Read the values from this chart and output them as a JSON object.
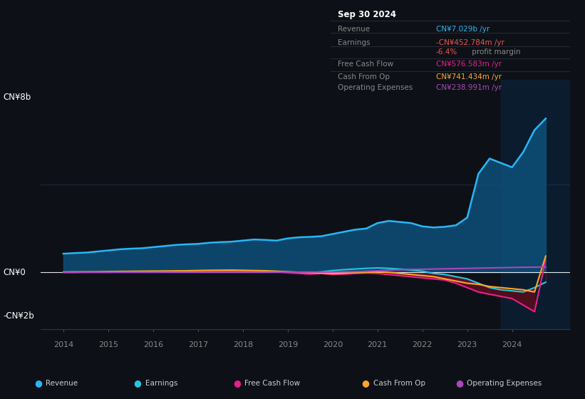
{
  "bg_color": "#0d1117",
  "plot_bg_color": "#0d1b2a",
  "grid_color": "#2a3f5f",
  "zero_line_color": "#ffffff",
  "ylabel_top": "CN¥8b",
  "ylabel_zero": "CN¥0",
  "ylabel_bottom": "-CN¥2b",
  "ylim": [
    -2600000000.0,
    8800000000.0
  ],
  "xlim": [
    2013.5,
    2025.3
  ],
  "x_tick_years": [
    2014,
    2015,
    2016,
    2017,
    2018,
    2019,
    2020,
    2021,
    2022,
    2023,
    2024
  ],
  "years": [
    2014.0,
    2014.25,
    2014.5,
    2014.75,
    2015.0,
    2015.25,
    2015.5,
    2015.75,
    2016.0,
    2016.25,
    2016.5,
    2016.75,
    2017.0,
    2017.25,
    2017.5,
    2017.75,
    2018.0,
    2018.25,
    2018.5,
    2018.75,
    2019.0,
    2019.25,
    2019.5,
    2019.75,
    2020.0,
    2020.25,
    2020.5,
    2020.75,
    2021.0,
    2021.25,
    2021.5,
    2021.75,
    2022.0,
    2022.25,
    2022.5,
    2022.75,
    2023.0,
    2023.25,
    2023.5,
    2023.75,
    2024.0,
    2024.25,
    2024.5,
    2024.75
  ],
  "revenue": [
    850000000.0,
    880000000.0,
    900000000.0,
    950000000.0,
    1000000000.0,
    1050000000.0,
    1080000000.0,
    1100000000.0,
    1150000000.0,
    1200000000.0,
    1250000000.0,
    1280000000.0,
    1300000000.0,
    1350000000.0,
    1380000000.0,
    1400000000.0,
    1450000000.0,
    1500000000.0,
    1480000000.0,
    1450000000.0,
    1550000000.0,
    1600000000.0,
    1620000000.0,
    1650000000.0,
    1750000000.0,
    1850000000.0,
    1950000000.0,
    2000000000.0,
    2250000000.0,
    2350000000.0,
    2300000000.0,
    2250000000.0,
    2100000000.0,
    2050000000.0,
    2080000000.0,
    2150000000.0,
    2500000000.0,
    4500000000.0,
    5200000000.0,
    5000000000.0,
    4800000000.0,
    5500000000.0,
    6500000000.0,
    7029000000.0
  ],
  "earnings": [
    10000000.0,
    10000000.0,
    10000000.0,
    15000000.0,
    20000000.0,
    20000000.0,
    25000000.0,
    25000000.0,
    30000000.0,
    30000000.0,
    35000000.0,
    35000000.0,
    40000000.0,
    40000000.0,
    40000000.0,
    40000000.0,
    50000000.0,
    50000000.0,
    40000000.0,
    30000000.0,
    20000000.0,
    0.0,
    -20000000.0,
    20000000.0,
    80000000.0,
    120000000.0,
    150000000.0,
    180000000.0,
    200000000.0,
    180000000.0,
    150000000.0,
    100000000.0,
    50000000.0,
    -50000000.0,
    -100000000.0,
    -200000000.0,
    -300000000.0,
    -500000000.0,
    -700000000.0,
    -800000000.0,
    -850000000.0,
    -900000000.0,
    -700000000.0,
    -452784000.0
  ],
  "free_cash_flow": [
    0.0,
    0.0,
    10000000.0,
    10000000.0,
    20000000.0,
    20000000.0,
    25000000.0,
    30000000.0,
    30000000.0,
    35000000.0,
    40000000.0,
    40000000.0,
    50000000.0,
    60000000.0,
    70000000.0,
    80000000.0,
    60000000.0,
    50000000.0,
    40000000.0,
    20000000.0,
    -20000000.0,
    -50000000.0,
    -80000000.0,
    -50000000.0,
    -100000000.0,
    -80000000.0,
    -50000000.0,
    -30000000.0,
    -50000000.0,
    -100000000.0,
    -150000000.0,
    -200000000.0,
    -250000000.0,
    -300000000.0,
    -350000000.0,
    -500000000.0,
    -700000000.0,
    -900000000.0,
    -1000000000.0,
    -1100000000.0,
    -1200000000.0,
    -1500000000.0,
    -1800000000.0,
    576583000.0
  ],
  "cash_from_op": [
    10000000.0,
    15000000.0,
    20000000.0,
    20000000.0,
    30000000.0,
    40000000.0,
    45000000.0,
    50000000.0,
    55000000.0,
    60000000.0,
    65000000.0,
    70000000.0,
    80000000.0,
    90000000.0,
    95000000.0,
    100000000.0,
    90000000.0,
    80000000.0,
    70000000.0,
    50000000.0,
    20000000.0,
    0.0,
    -20000000.0,
    -40000000.0,
    -60000000.0,
    -40000000.0,
    -20000000.0,
    0.0,
    20000000.0,
    0.0,
    -50000000.0,
    -100000000.0,
    -150000000.0,
    -200000000.0,
    -300000000.0,
    -400000000.0,
    -500000000.0,
    -550000000.0,
    -650000000.0,
    -700000000.0,
    -750000000.0,
    -800000000.0,
    -900000000.0,
    741434000.0
  ],
  "operating_expenses": [
    -5000000.0,
    -5000000.0,
    0.0,
    0.0,
    0.0,
    5000000.0,
    5000000.0,
    5000000.0,
    5000000.0,
    10000000.0,
    10000000.0,
    10000000.0,
    10000000.0,
    10000000.0,
    10000000.0,
    10000000.0,
    10000000.0,
    10000000.0,
    10000000.0,
    10000000.0,
    10000000.0,
    10000000.0,
    10000000.0,
    10000000.0,
    10000000.0,
    20000000.0,
    30000000.0,
    50000000.0,
    70000000.0,
    100000000.0,
    120000000.0,
    130000000.0,
    140000000.0,
    150000000.0,
    160000000.0,
    170000000.0,
    180000000.0,
    190000000.0,
    200000000.0,
    210000000.0,
    220000000.0,
    230000000.0,
    235000000.0,
    238991000.0
  ],
  "revenue_color": "#29b6f6",
  "revenue_fill": "#0d4f7a",
  "earnings_color": "#26c6da",
  "fcf_color": "#e91e8c",
  "cashop_color": "#ffa726",
  "opex_color": "#ab47bc",
  "neg_fill_dark": "#5a1020",
  "neg_fill_mid": "#7a1530",
  "highlight_bg": "#0a2540",
  "info_bg": "#050a10",
  "info_title": "Sep 30 2024",
  "info_revenue_label": "Revenue",
  "info_revenue_val": "CN¥7.029b /yr",
  "info_revenue_col": "#29b6f6",
  "info_earnings_label": "Earnings",
  "info_earnings_val": "-CN¥452.784m /yr",
  "info_earnings_col": "#ef5350",
  "info_margin_pct": "-6.4%",
  "info_margin_pct_col": "#ef5350",
  "info_margin_text": " profit margin",
  "info_margin_text_col": "#888888",
  "info_fcf_label": "Free Cash Flow",
  "info_fcf_val": "CN¥576.583m /yr",
  "info_fcf_col": "#e91e8c",
  "info_cashop_label": "Cash From Op",
  "info_cashop_val": "CN¥741.434m /yr",
  "info_cashop_col": "#ffa726",
  "info_opex_label": "Operating Expenses",
  "info_opex_val": "CN¥238.991m /yr",
  "info_opex_col": "#ab47bc",
  "legend": [
    {
      "label": "Revenue",
      "color": "#29b6f6"
    },
    {
      "label": "Earnings",
      "color": "#26c6da"
    },
    {
      "label": "Free Cash Flow",
      "color": "#e91e8c"
    },
    {
      "label": "Cash From Op",
      "color": "#ffa726"
    },
    {
      "label": "Operating Expenses",
      "color": "#ab47bc"
    }
  ]
}
